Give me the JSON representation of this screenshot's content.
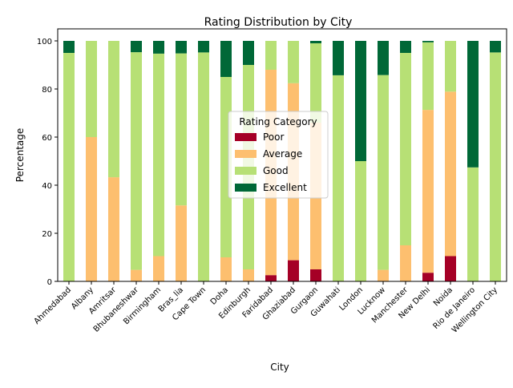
{
  "chart_data": {
    "type": "bar",
    "stacked": true,
    "title": "Rating Distribution by City",
    "xlabel": "City",
    "ylabel": "Percentage",
    "ylim": [
      0,
      105
    ],
    "yticks": [
      0,
      20,
      40,
      60,
      80,
      100
    ],
    "grid": false,
    "legend": {
      "title": "Rating Category",
      "placement": "center"
    },
    "categories": [
      "Ahmedabad",
      "Albany",
      "Amritsar",
      "Bhubaneshwar",
      "Birmingham",
      "Bras\u001f_lia",
      "Cape Town",
      "Doha",
      "Edinburgh",
      "Faridabad",
      "Ghaziabad",
      "Gurgaon",
      "Guwahati",
      "London",
      "Lucknow",
      "Manchester",
      "New Delhi",
      "Noida",
      "Rio de Janeiro",
      "Wellington City"
    ],
    "series": [
      {
        "name": "Poor",
        "color": "#a50026",
        "values": [
          0,
          0,
          0,
          0,
          0,
          0,
          0,
          0,
          0,
          2.6,
          8.8,
          5.0,
          0,
          0,
          0,
          0,
          3.6,
          10.5,
          0,
          0
        ]
      },
      {
        "name": "Average",
        "color": "#fdbf6f",
        "values": [
          0,
          60.0,
          43.3,
          4.8,
          10.5,
          31.6,
          0,
          10.0,
          5.0,
          85.4,
          73.6,
          61.0,
          0,
          0,
          4.8,
          15.0,
          67.7,
          68.4,
          0,
          0
        ]
      },
      {
        "name": "Good",
        "color": "#b7e075",
        "values": [
          95.0,
          40.0,
          56.7,
          90.5,
          84.2,
          63.2,
          95.2,
          75.0,
          85.0,
          12.0,
          17.6,
          33.0,
          85.7,
          50.0,
          81.0,
          80.0,
          28.1,
          21.1,
          47.4,
          95.2
        ]
      },
      {
        "name": "Excellent",
        "color": "#006837",
        "values": [
          5.0,
          0,
          0,
          4.7,
          5.3,
          5.2,
          4.8,
          15.0,
          10.0,
          0,
          0,
          1.0,
          14.3,
          50.0,
          14.2,
          5.0,
          0.6,
          0,
          52.6,
          4.8
        ]
      }
    ]
  }
}
